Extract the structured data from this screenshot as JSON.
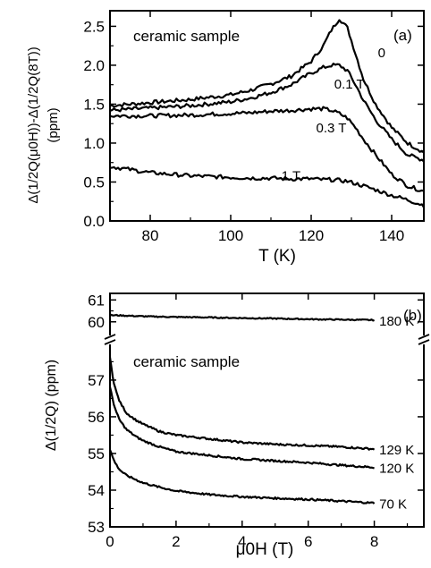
{
  "chart_data": [
    {
      "panel_label": "(a)",
      "type": "line",
      "annotation": "ceramic sample",
      "xlabel": "T (K)",
      "ylabel": "Δ(1/2Q(μ0H))-Δ(1/2Q(8T))",
      "ylabel_unit": "(ppm)",
      "xlim": [
        70,
        148
      ],
      "ylim": [
        0,
        2.7
      ],
      "xticks": [
        "80",
        "100",
        "120",
        "140"
      ],
      "yticks": [
        "0.0",
        "0.5",
        "1.0",
        "1.5",
        "2.0",
        "2.5"
      ],
      "grid": false,
      "series": [
        {
          "name": "0",
          "x": [
            70,
            80,
            90,
            100,
            105,
            110,
            115,
            120,
            123,
            125,
            127,
            129,
            131,
            133,
            136,
            140,
            144,
            148
          ],
          "y": [
            1.48,
            1.52,
            1.56,
            1.62,
            1.68,
            1.76,
            1.86,
            2.05,
            2.25,
            2.45,
            2.6,
            2.48,
            2.15,
            1.82,
            1.5,
            1.2,
            1.0,
            0.88
          ]
        },
        {
          "name": "0.1 T",
          "x": [
            70,
            80,
            90,
            100,
            105,
            110,
            115,
            120,
            123,
            125,
            127,
            129,
            131,
            133,
            136,
            140,
            144,
            148
          ],
          "y": [
            1.42,
            1.45,
            1.48,
            1.53,
            1.58,
            1.65,
            1.75,
            1.9,
            1.97,
            2.0,
            2.0,
            1.93,
            1.75,
            1.55,
            1.3,
            1.05,
            0.85,
            0.78
          ]
        },
        {
          "name": "0.3 T",
          "x": [
            70,
            80,
            90,
            100,
            105,
            110,
            115,
            120,
            123,
            125,
            127,
            129,
            131,
            133,
            136,
            140,
            144,
            148
          ],
          "y": [
            1.35,
            1.35,
            1.36,
            1.38,
            1.39,
            1.41,
            1.42,
            1.44,
            1.44,
            1.42,
            1.38,
            1.32,
            1.2,
            1.05,
            0.85,
            0.6,
            0.45,
            0.38
          ]
        },
        {
          "name": "1 T",
          "x": [
            70,
            80,
            90,
            100,
            105,
            110,
            115,
            120,
            123,
            125,
            127,
            129,
            131,
            133,
            136,
            140,
            144,
            148
          ],
          "y": [
            0.7,
            0.62,
            0.58,
            0.56,
            0.55,
            0.55,
            0.54,
            0.54,
            0.53,
            0.53,
            0.52,
            0.51,
            0.48,
            0.45,
            0.4,
            0.33,
            0.27,
            0.2
          ]
        }
      ],
      "series_labels": [
        {
          "text": "0",
          "x": 137.5,
          "y": 2.1
        },
        {
          "text": "0.1 T",
          "x": 129.5,
          "y": 1.7
        },
        {
          "text": "0.3 T",
          "x": 125,
          "y": 1.14
        },
        {
          "text": "1 T",
          "x": 115,
          "y": 0.52
        }
      ]
    },
    {
      "panel_label": "(b)",
      "type": "line",
      "annotation": "ceramic sample",
      "xlabel": "μ0H (T)",
      "ylabel": "Δ(1/2Q) (ppm)",
      "xlim": [
        0,
        9.5
      ],
      "axis_break": true,
      "ylim_upper": [
        59.5,
        61.3
      ],
      "ylim_lower": [
        53,
        57.9
      ],
      "xticks": [
        "0",
        "2",
        "4",
        "6",
        "8"
      ],
      "yticks_upper": [
        "60",
        "61"
      ],
      "yticks_lower": [
        "53",
        "54",
        "55",
        "56",
        "57"
      ],
      "grid": false,
      "series": [
        {
          "name": "180 K",
          "x": [
            0,
            0.2,
            0.5,
            1,
            2,
            3,
            4,
            5,
            6,
            7,
            8
          ],
          "y": [
            60.3,
            60.3,
            60.28,
            60.25,
            60.22,
            60.2,
            60.17,
            60.15,
            60.12,
            60.1,
            60.08
          ]
        },
        {
          "name": "129 K",
          "x": [
            0,
            0.05,
            0.1,
            0.2,
            0.3,
            0.5,
            0.8,
            1,
            1.5,
            2,
            3,
            4,
            5,
            6,
            7,
            8
          ],
          "y": [
            57.6,
            57.3,
            57.0,
            56.65,
            56.4,
            56.1,
            55.9,
            55.8,
            55.6,
            55.5,
            55.4,
            55.3,
            55.25,
            55.22,
            55.18,
            55.12
          ]
        },
        {
          "name": "120 K",
          "x": [
            0,
            0.05,
            0.1,
            0.2,
            0.3,
            0.5,
            0.8,
            1,
            1.5,
            2,
            3,
            4,
            5,
            6,
            7,
            8
          ],
          "y": [
            56.8,
            56.6,
            56.4,
            56.1,
            55.9,
            55.65,
            55.45,
            55.35,
            55.18,
            55.05,
            54.95,
            54.85,
            54.8,
            54.75,
            54.68,
            54.62
          ]
        },
        {
          "name": "70 K",
          "x": [
            0,
            0.05,
            0.1,
            0.2,
            0.3,
            0.5,
            0.8,
            1,
            1.5,
            2,
            3,
            4,
            5,
            6,
            7,
            8
          ],
          "y": [
            55.1,
            54.98,
            54.85,
            54.68,
            54.55,
            54.4,
            54.28,
            54.2,
            54.08,
            53.98,
            53.88,
            53.82,
            53.78,
            53.75,
            53.7,
            53.65
          ]
        }
      ]
    }
  ]
}
